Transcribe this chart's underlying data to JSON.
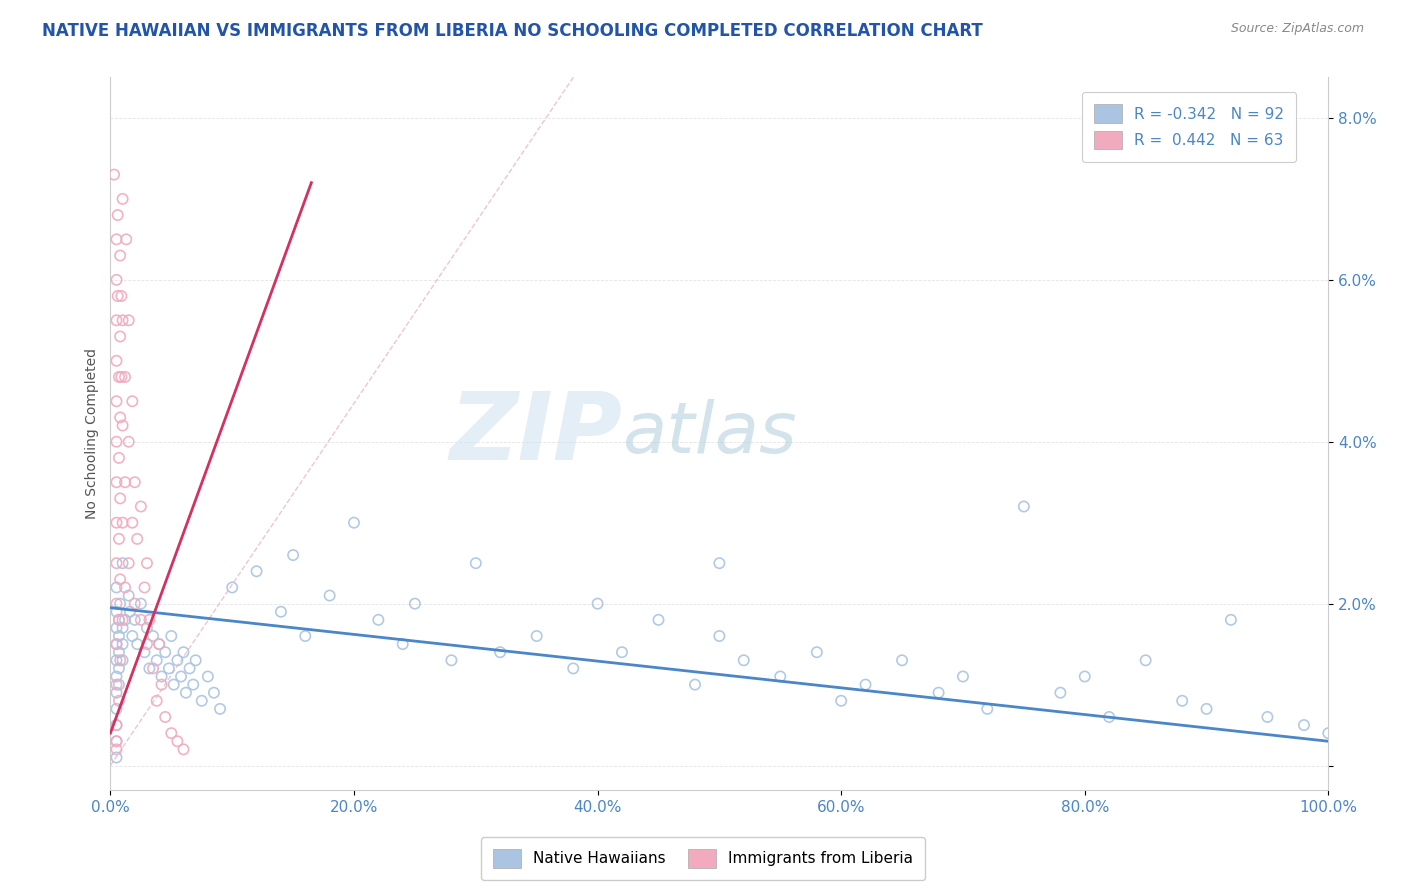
{
  "title": "NATIVE HAWAIIAN VS IMMIGRANTS FROM LIBERIA NO SCHOOLING COMPLETED CORRELATION CHART",
  "source": "Source: ZipAtlas.com",
  "ylabel": "No Schooling Completed",
  "xlim": [
    0,
    1.0
  ],
  "ylim": [
    -0.003,
    0.085
  ],
  "xticks": [
    0.0,
    0.2,
    0.4,
    0.6,
    0.8,
    1.0
  ],
  "xticklabels": [
    "0.0%",
    "20.0%",
    "40.0%",
    "60.0%",
    "80.0%",
    "100.0%"
  ],
  "ytick_vals": [
    0.0,
    0.02,
    0.04,
    0.06,
    0.08
  ],
  "yticklabels": [
    "",
    "2.0%",
    "4.0%",
    "6.0%",
    "8.0%"
  ],
  "blue_color": "#aac4e2",
  "pink_color": "#f2aabe",
  "blue_line_color": "#4a86c8",
  "pink_line_color": "#d43060",
  "dash_line_color": "#e8b8c8",
  "title_color": "#2255aa",
  "axis_color": "#4a86c8",
  "tick_color": "#4a86c8",
  "watermark_zip_color": "#ddeeff",
  "watermark_atlas_color": "#c8ddf0",
  "title_fontsize": 12,
  "source_fontsize": 9,
  "blue_scatter": [
    [
      0.005,
      0.022
    ],
    [
      0.008,
      0.02
    ],
    [
      0.01,
      0.025
    ],
    [
      0.012,
      0.018
    ],
    [
      0.015,
      0.021
    ],
    [
      0.016,
      0.019
    ],
    [
      0.018,
      0.016
    ],
    [
      0.02,
      0.018
    ],
    [
      0.022,
      0.015
    ],
    [
      0.025,
      0.02
    ],
    [
      0.028,
      0.014
    ],
    [
      0.03,
      0.017
    ],
    [
      0.032,
      0.012
    ],
    [
      0.035,
      0.016
    ],
    [
      0.038,
      0.013
    ],
    [
      0.04,
      0.015
    ],
    [
      0.042,
      0.011
    ],
    [
      0.045,
      0.014
    ],
    [
      0.048,
      0.012
    ],
    [
      0.05,
      0.016
    ],
    [
      0.052,
      0.01
    ],
    [
      0.055,
      0.013
    ],
    [
      0.058,
      0.011
    ],
    [
      0.06,
      0.014
    ],
    [
      0.062,
      0.009
    ],
    [
      0.065,
      0.012
    ],
    [
      0.068,
      0.01
    ],
    [
      0.07,
      0.013
    ],
    [
      0.075,
      0.008
    ],
    [
      0.08,
      0.011
    ],
    [
      0.085,
      0.009
    ],
    [
      0.09,
      0.007
    ],
    [
      0.005,
      0.019
    ],
    [
      0.005,
      0.017
    ],
    [
      0.005,
      0.015
    ],
    [
      0.005,
      0.013
    ],
    [
      0.005,
      0.011
    ],
    [
      0.005,
      0.009
    ],
    [
      0.005,
      0.007
    ],
    [
      0.005,
      0.005
    ],
    [
      0.005,
      0.003
    ],
    [
      0.005,
      0.001
    ],
    [
      0.007,
      0.018
    ],
    [
      0.007,
      0.016
    ],
    [
      0.007,
      0.014
    ],
    [
      0.007,
      0.012
    ],
    [
      0.007,
      0.01
    ],
    [
      0.01,
      0.017
    ],
    [
      0.01,
      0.015
    ],
    [
      0.01,
      0.013
    ],
    [
      0.1,
      0.022
    ],
    [
      0.12,
      0.024
    ],
    [
      0.14,
      0.019
    ],
    [
      0.15,
      0.026
    ],
    [
      0.16,
      0.016
    ],
    [
      0.18,
      0.021
    ],
    [
      0.2,
      0.03
    ],
    [
      0.22,
      0.018
    ],
    [
      0.24,
      0.015
    ],
    [
      0.25,
      0.02
    ],
    [
      0.28,
      0.013
    ],
    [
      0.3,
      0.025
    ],
    [
      0.32,
      0.014
    ],
    [
      0.35,
      0.016
    ],
    [
      0.38,
      0.012
    ],
    [
      0.4,
      0.02
    ],
    [
      0.42,
      0.014
    ],
    [
      0.45,
      0.018
    ],
    [
      0.48,
      0.01
    ],
    [
      0.5,
      0.016
    ],
    [
      0.5,
      0.025
    ],
    [
      0.52,
      0.013
    ],
    [
      0.55,
      0.011
    ],
    [
      0.58,
      0.014
    ],
    [
      0.6,
      0.008
    ],
    [
      0.62,
      0.01
    ],
    [
      0.65,
      0.013
    ],
    [
      0.68,
      0.009
    ],
    [
      0.7,
      0.011
    ],
    [
      0.72,
      0.007
    ],
    [
      0.75,
      0.032
    ],
    [
      0.78,
      0.009
    ],
    [
      0.8,
      0.011
    ],
    [
      0.82,
      0.006
    ],
    [
      0.85,
      0.013
    ],
    [
      0.88,
      0.008
    ],
    [
      0.9,
      0.007
    ],
    [
      0.92,
      0.018
    ],
    [
      0.95,
      0.006
    ],
    [
      0.98,
      0.005
    ],
    [
      1.0,
      0.004
    ]
  ],
  "pink_scatter": [
    [
      0.003,
      0.073
    ],
    [
      0.005,
      0.065
    ],
    [
      0.005,
      0.06
    ],
    [
      0.005,
      0.055
    ],
    [
      0.005,
      0.05
    ],
    [
      0.005,
      0.045
    ],
    [
      0.005,
      0.04
    ],
    [
      0.005,
      0.035
    ],
    [
      0.005,
      0.03
    ],
    [
      0.005,
      0.025
    ],
    [
      0.005,
      0.02
    ],
    [
      0.005,
      0.015
    ],
    [
      0.005,
      0.01
    ],
    [
      0.005,
      0.005
    ],
    [
      0.005,
      0.002
    ],
    [
      0.006,
      0.068
    ],
    [
      0.006,
      0.058
    ],
    [
      0.007,
      0.048
    ],
    [
      0.007,
      0.038
    ],
    [
      0.007,
      0.028
    ],
    [
      0.007,
      0.018
    ],
    [
      0.007,
      0.008
    ],
    [
      0.008,
      0.063
    ],
    [
      0.008,
      0.053
    ],
    [
      0.008,
      0.043
    ],
    [
      0.008,
      0.033
    ],
    [
      0.008,
      0.023
    ],
    [
      0.008,
      0.013
    ],
    [
      0.009,
      0.058
    ],
    [
      0.009,
      0.048
    ],
    [
      0.01,
      0.07
    ],
    [
      0.01,
      0.055
    ],
    [
      0.01,
      0.042
    ],
    [
      0.01,
      0.03
    ],
    [
      0.01,
      0.018
    ],
    [
      0.012,
      0.048
    ],
    [
      0.012,
      0.035
    ],
    [
      0.012,
      0.022
    ],
    [
      0.013,
      0.065
    ],
    [
      0.015,
      0.04
    ],
    [
      0.015,
      0.055
    ],
    [
      0.015,
      0.025
    ],
    [
      0.018,
      0.03
    ],
    [
      0.018,
      0.045
    ],
    [
      0.02,
      0.035
    ],
    [
      0.02,
      0.02
    ],
    [
      0.022,
      0.028
    ],
    [
      0.025,
      0.018
    ],
    [
      0.025,
      0.032
    ],
    [
      0.028,
      0.022
    ],
    [
      0.03,
      0.015
    ],
    [
      0.03,
      0.025
    ],
    [
      0.032,
      0.018
    ],
    [
      0.035,
      0.012
    ],
    [
      0.038,
      0.008
    ],
    [
      0.04,
      0.015
    ],
    [
      0.042,
      0.01
    ],
    [
      0.045,
      0.006
    ],
    [
      0.05,
      0.004
    ],
    [
      0.055,
      0.003
    ],
    [
      0.06,
      0.002
    ],
    [
      0.005,
      0.003
    ]
  ],
  "blue_line_x": [
    0.0,
    1.0
  ],
  "blue_line_y": [
    0.0195,
    0.003
  ],
  "pink_line_x": [
    0.0,
    0.165
  ],
  "pink_line_y": [
    0.004,
    0.072
  ],
  "dash_line_x": [
    0.0,
    0.38
  ],
  "dash_line_y": [
    0.0,
    0.085
  ]
}
